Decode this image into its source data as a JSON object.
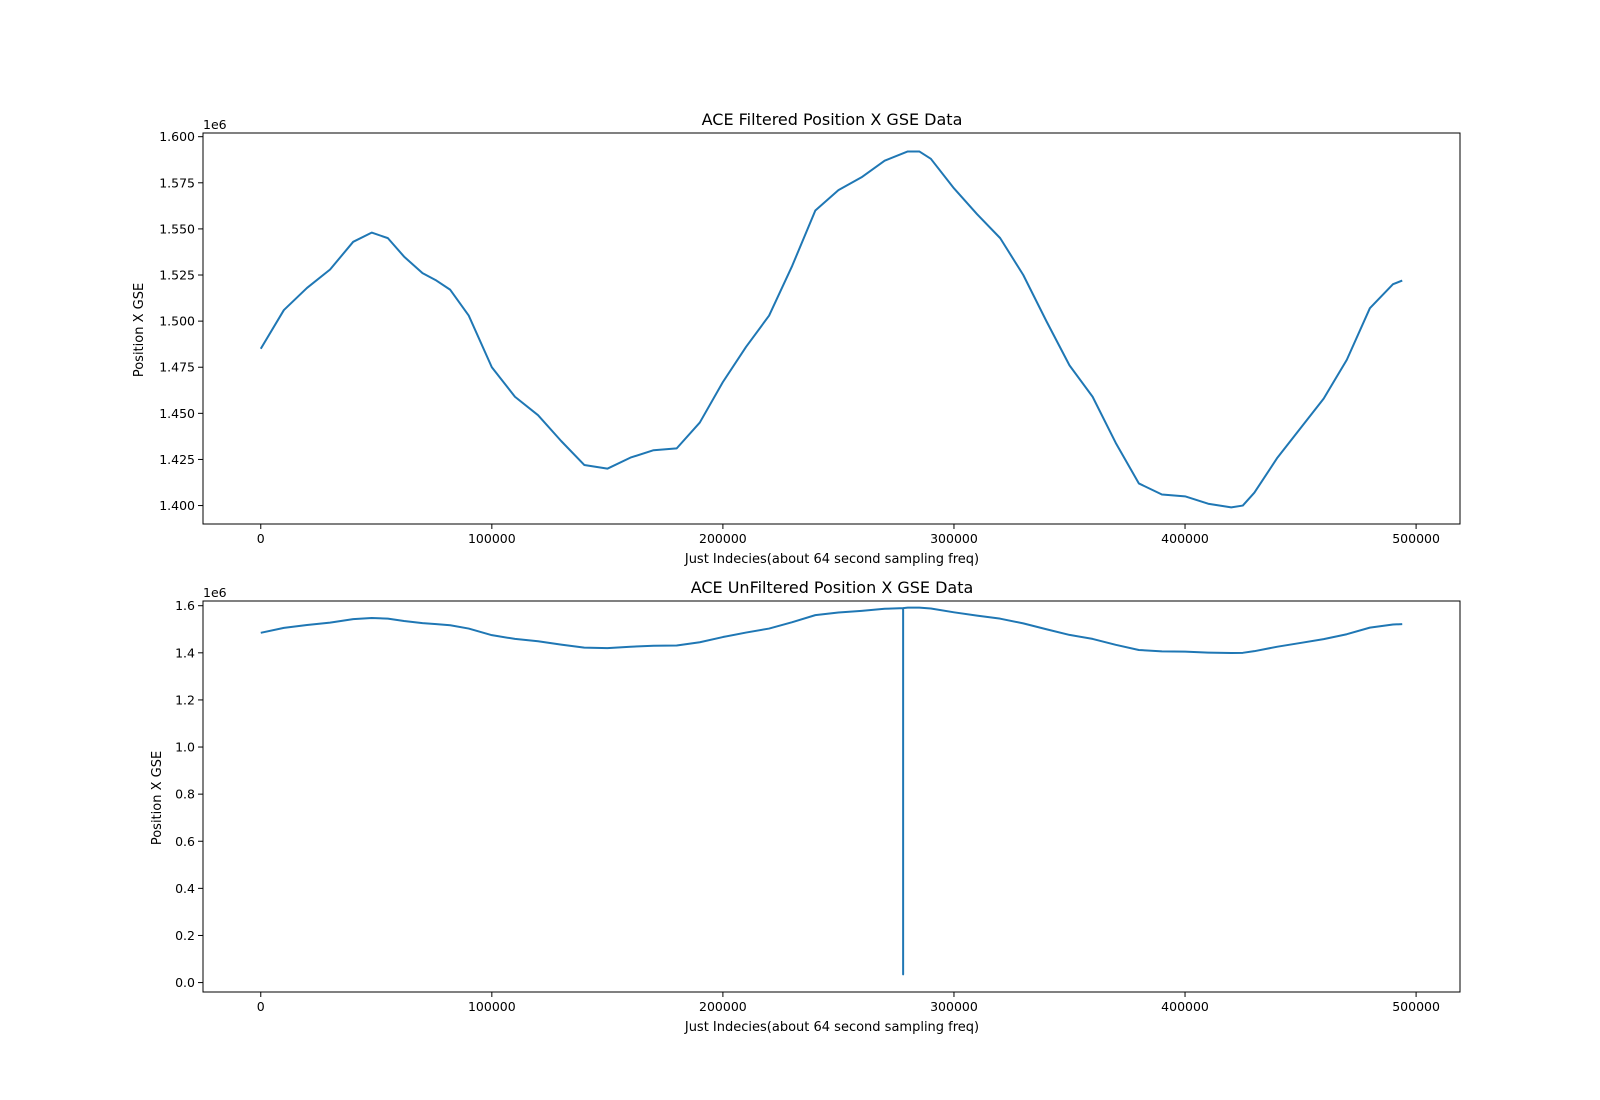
{
  "chart_data": [
    {
      "type": "line",
      "title": "ACE Filtered Position X GSE Data",
      "xlabel": "Just Indecies(about 64 second sampling freq)",
      "ylabel": "Position X GSE",
      "offset_label": "1e6",
      "xlim": [
        -25000,
        519000
      ],
      "ylim": [
        1.39,
        1.602
      ],
      "xticks": [
        0,
        100000,
        200000,
        300000,
        400000,
        500000
      ],
      "xtick_labels": [
        "0",
        "100000",
        "200000",
        "300000",
        "400000",
        "500000"
      ],
      "yticks": [
        1.4,
        1.425,
        1.45,
        1.475,
        1.5,
        1.525,
        1.55,
        1.575,
        1.6
      ],
      "ytick_labels": [
        "1.400",
        "1.425",
        "1.450",
        "1.475",
        "1.500",
        "1.525",
        "1.550",
        "1.575",
        "1.600"
      ],
      "grid": false,
      "series": [
        {
          "color": "#1f77b4",
          "x": [
            0,
            10000,
            20000,
            30000,
            40000,
            48000,
            55000,
            62000,
            70000,
            76000,
            82000,
            90000,
            100000,
            110000,
            120000,
            130000,
            140000,
            150000,
            160000,
            170000,
            180000,
            190000,
            200000,
            210000,
            220000,
            230000,
            240000,
            250000,
            260000,
            270000,
            280000,
            285000,
            290000,
            300000,
            310000,
            320000,
            330000,
            340000,
            350000,
            360000,
            370000,
            380000,
            390000,
            400000,
            410000,
            420000,
            425000,
            430000,
            440000,
            450000,
            460000,
            470000,
            480000,
            490000,
            494000
          ],
          "y": [
            1.485,
            1.506,
            1.518,
            1.528,
            1.543,
            1.548,
            1.545,
            1.535,
            1.526,
            1.522,
            1.517,
            1.503,
            1.475,
            1.459,
            1.449,
            1.435,
            1.422,
            1.42,
            1.426,
            1.43,
            1.431,
            1.445,
            1.467,
            1.486,
            1.503,
            1.53,
            1.56,
            1.571,
            1.578,
            1.587,
            1.592,
            1.592,
            1.588,
            1.572,
            1.558,
            1.545,
            1.525,
            1.5,
            1.476,
            1.459,
            1.434,
            1.412,
            1.406,
            1.405,
            1.401,
            1.399,
            1.4,
            1.407,
            1.426,
            1.442,
            1.458,
            1.479,
            1.507,
            1.52,
            1.522
          ]
        }
      ]
    },
    {
      "type": "line",
      "title": "ACE UnFiltered Position X GSE Data",
      "xlabel": "Just Indecies(about 64 second sampling freq)",
      "ylabel": "Position X GSE",
      "offset_label": "1e6",
      "xlim": [
        -25000,
        519000
      ],
      "ylim": [
        -0.04,
        1.62
      ],
      "xticks": [
        0,
        100000,
        200000,
        300000,
        400000,
        500000
      ],
      "xtick_labels": [
        "0",
        "100000",
        "200000",
        "300000",
        "400000",
        "500000"
      ],
      "yticks": [
        0.0,
        0.2,
        0.4,
        0.6,
        0.8,
        1.0,
        1.2,
        1.4,
        1.6
      ],
      "ytick_labels": [
        "0.0",
        "0.2",
        "0.4",
        "0.6",
        "0.8",
        "1.0",
        "1.2",
        "1.4",
        "1.6"
      ],
      "grid": false,
      "series": [
        {
          "color": "#1f77b4",
          "x": [
            0,
            10000,
            20000,
            30000,
            40000,
            48000,
            55000,
            62000,
            70000,
            76000,
            82000,
            90000,
            100000,
            110000,
            120000,
            130000,
            140000,
            150000,
            160000,
            170000,
            180000,
            190000,
            200000,
            210000,
            220000,
            230000,
            240000,
            250000,
            260000,
            270000,
            278000,
            278000,
            278000,
            280000,
            285000,
            290000,
            300000,
            310000,
            320000,
            330000,
            340000,
            350000,
            360000,
            370000,
            380000,
            390000,
            400000,
            410000,
            420000,
            425000,
            430000,
            440000,
            450000,
            460000,
            470000,
            480000,
            490000,
            494000
          ],
          "y": [
            1.485,
            1.506,
            1.518,
            1.528,
            1.543,
            1.548,
            1.545,
            1.535,
            1.526,
            1.522,
            1.517,
            1.503,
            1.475,
            1.459,
            1.449,
            1.435,
            1.422,
            1.42,
            1.426,
            1.43,
            1.431,
            1.445,
            1.467,
            1.486,
            1.503,
            1.53,
            1.56,
            1.571,
            1.578,
            1.587,
            1.59,
            0.035,
            1.59,
            1.592,
            1.592,
            1.588,
            1.572,
            1.558,
            1.545,
            1.525,
            1.5,
            1.476,
            1.459,
            1.434,
            1.412,
            1.406,
            1.405,
            1.401,
            1.399,
            1.4,
            1.407,
            1.426,
            1.442,
            1.458,
            1.479,
            1.507,
            1.52,
            1.522
          ]
        }
      ]
    }
  ]
}
